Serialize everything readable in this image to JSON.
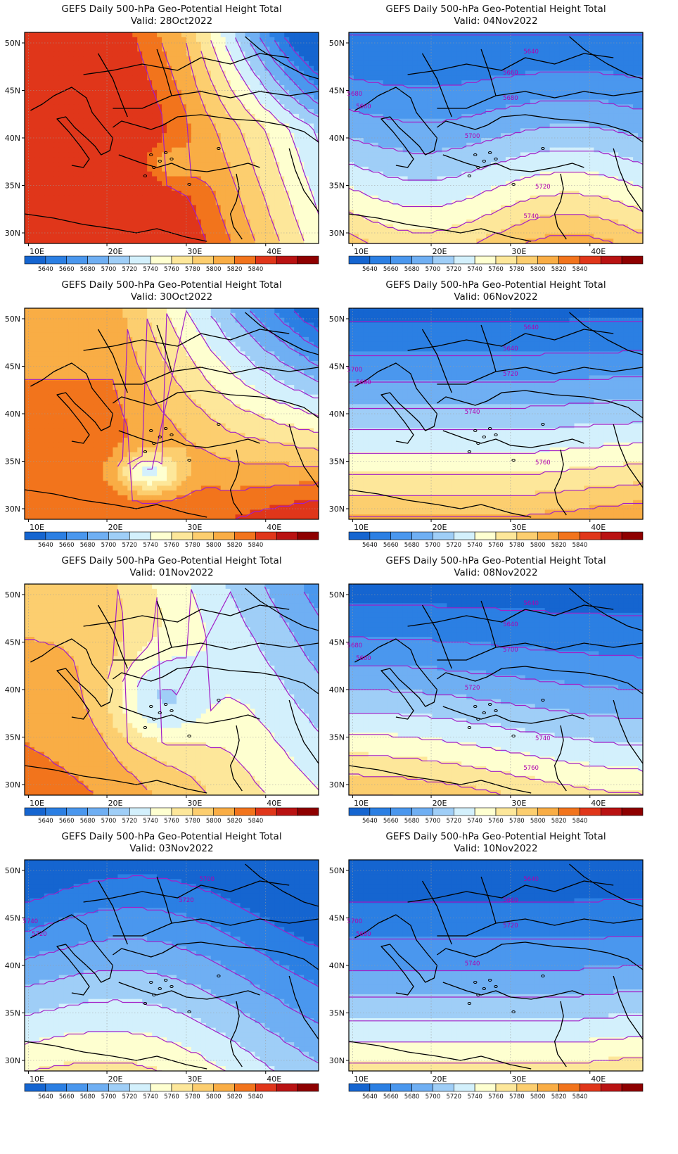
{
  "figure": {
    "title_prefix": "GEFS Daily 500-hPa Geo-Potential Height Total",
    "palette": [
      "#1565d0",
      "#2b7fe3",
      "#4a97ee",
      "#6faff3",
      "#9fcef7",
      "#d3f0fc",
      "#feffd0",
      "#fde79a",
      "#fcce6f",
      "#f9ad45",
      "#f2741c",
      "#e0361a",
      "#b91212",
      "#8e0000"
    ],
    "levels": [
      5640,
      5660,
      5680,
      5700,
      5720,
      5740,
      5760,
      5780,
      5800,
      5820,
      5840
    ],
    "x_ticks": [
      "10E",
      "20E",
      "30E",
      "40E"
    ],
    "y_ticks": [
      "50N",
      "45N",
      "40N",
      "35N",
      "30N"
    ]
  },
  "panels": [
    {
      "title": "GEFS Daily 500-hPa Geo-Potential Height Total",
      "valid": "Valid: 28Oct2022",
      "labels": []
    },
    {
      "title": "GEFS Daily 500-hPa Geo-Potential Height Total",
      "valid": "Valid: 04Nov2022",
      "labels": [
        "5640",
        "5660",
        "5660",
        "5680",
        "5680",
        "5700",
        "5720",
        "5740"
      ]
    },
    {
      "title": "GEFS Daily 500-hPa Geo-Potential Height Total",
      "valid": "Valid: 30Oct2022",
      "labels": []
    },
    {
      "title": "GEFS Daily 500-hPa Geo-Potential Height Total",
      "valid": "Valid: 06Nov2022",
      "labels": [
        "5640",
        "5640",
        "5680",
        "5700",
        "5720",
        "5740",
        "5760"
      ]
    },
    {
      "title": "GEFS Daily 500-hPa Geo-Potential Height Total",
      "valid": "Valid: 01Nov2022",
      "labels": []
    },
    {
      "title": "GEFS Daily 500-hPa Geo-Potential Height Total",
      "valid": "Valid: 08Nov2022",
      "labels": [
        "5640",
        "5640",
        "5660",
        "5680",
        "5700",
        "5720",
        "5740",
        "5760"
      ]
    },
    {
      "title": "GEFS Daily 500-hPa Geo-Potential Height Total",
      "valid": "Valid: 03Nov2022",
      "labels": [
        "5700",
        "5720",
        "5720",
        "5740"
      ]
    },
    {
      "title": "GEFS Daily 500-hPa Geo-Potential Height Total",
      "valid": "Valid: 10Nov2022",
      "labels": [
        "5640",
        "5660",
        "5680",
        "5700",
        "5720",
        "5740"
      ]
    }
  ]
}
